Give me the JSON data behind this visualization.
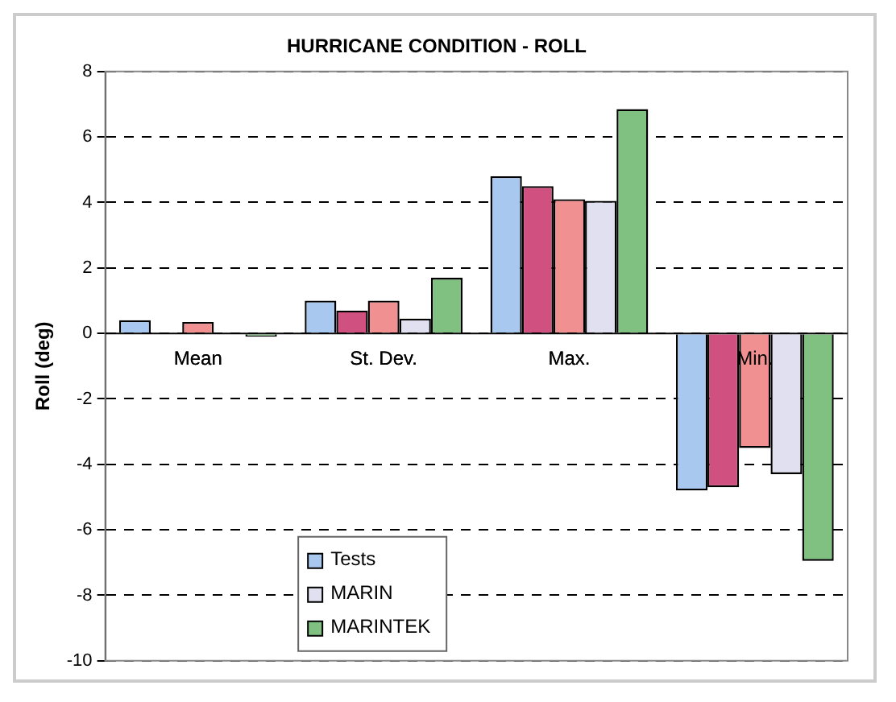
{
  "chart_data": {
    "type": "bar",
    "title": "HURRICANE CONDITION - ROLL",
    "ylabel": "Roll (deg)",
    "categories": [
      "Mean",
      "St. Dev.",
      "Max.",
      "Min."
    ],
    "series": [
      {
        "name": "Tests",
        "color": "#a8c8f0",
        "values": [
          0.4,
          1.0,
          4.8,
          -4.8
        ]
      },
      {
        "color": "#d05080",
        "values": [
          0,
          0.7,
          4.5,
          -4.7
        ]
      },
      {
        "color": "#f09090",
        "values": [
          0.35,
          1.0,
          4.1,
          -3.5
        ]
      },
      {
        "name": "MARIN",
        "color": "#e0e0f0",
        "values": [
          0,
          0.45,
          4.05,
          -4.3
        ]
      },
      {
        "name": "MARINTEK",
        "color": "#80c080",
        "values": [
          -0.1,
          1.7,
          6.85,
          -6.95
        ]
      }
    ],
    "ylim": [
      -10,
      8
    ],
    "yticks": [
      -10,
      -8,
      -6,
      -4,
      -2,
      0,
      2,
      4,
      6,
      8
    ],
    "grid": "y",
    "legend": "bottom left"
  }
}
